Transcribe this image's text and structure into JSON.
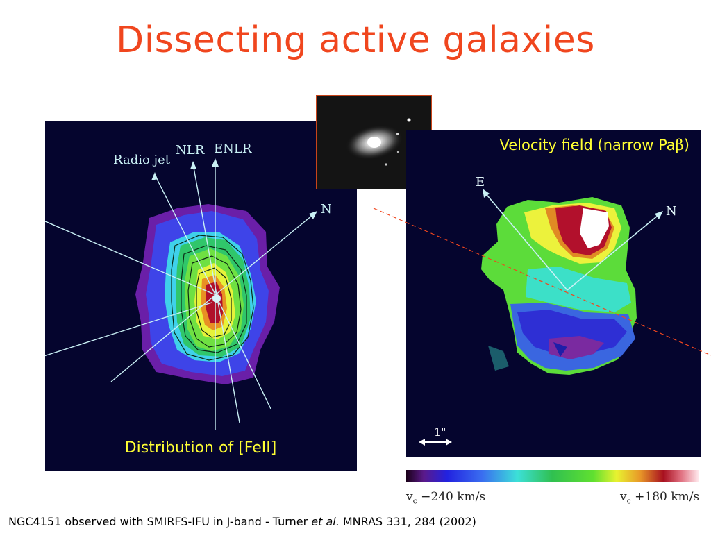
{
  "slide": {
    "title": "Dissecting active galaxies"
  },
  "left_panel": {
    "labels": {
      "radio_jet": "Radio jet",
      "nlr": "NLR",
      "enlr": "ENLR",
      "north": "N"
    },
    "caption": "Distribution of [FeII]"
  },
  "right_panel": {
    "title_prefix": "Velocity field (narrow Pa",
    "title_greek": "β",
    "title_suffix": ")",
    "labels": {
      "east": "E",
      "north": "N",
      "scale": "1\""
    }
  },
  "colorbar": {
    "min_label_v": "v",
    "min_label_sub": "c",
    "min_label_value": " −240 km/s",
    "max_label_v": "v",
    "max_label_sub": "c",
    "max_label_value": " +180 km/s",
    "vmin": -240,
    "vmax": 180
  },
  "footer": {
    "prefix": "NGC4151 observed with SMIRFS-IFU in J-band - Turner ",
    "italic": "et al.",
    "suffix": " MNRAS 331, 284 (2002)"
  }
}
